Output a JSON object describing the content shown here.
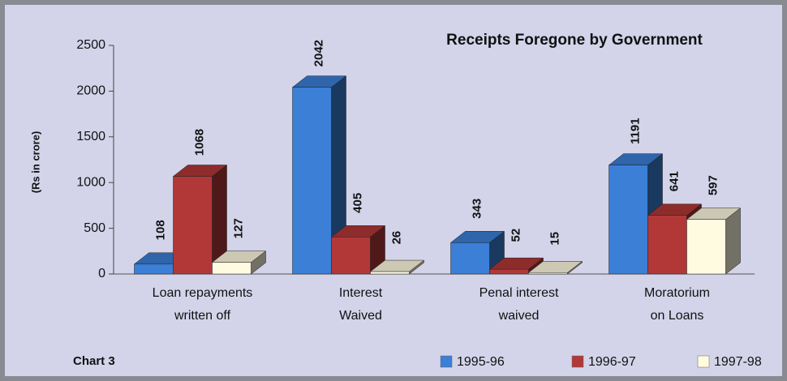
{
  "chart_data": {
    "type": "bar3d",
    "title": "Receipts Foregone by Government",
    "y_label": "(Rs in crore)",
    "annotation": "Chart 3",
    "categories": [
      [
        "Loan repayments",
        "written off"
      ],
      [
        "Interest",
        "Waived"
      ],
      [
        "Penal interest",
        "waived"
      ],
      [
        "Moratorium",
        "on Loans"
      ]
    ],
    "series": [
      {
        "name": "1995-96",
        "color": "#3b7fd6",
        "values": [
          108,
          2042,
          343,
          1191
        ]
      },
      {
        "name": "1996-97",
        "color": "#b23838",
        "values": [
          1068,
          405,
          52,
          641
        ]
      },
      {
        "name": "1997-98",
        "color": "#fffbe0",
        "values": [
          127,
          26,
          15,
          597
        ]
      }
    ],
    "ylim": [
      0,
      2500
    ],
    "yticks": [
      0,
      500,
      1000,
      1500,
      2000,
      2500
    ],
    "grid": false,
    "legend": "bottom-right"
  }
}
